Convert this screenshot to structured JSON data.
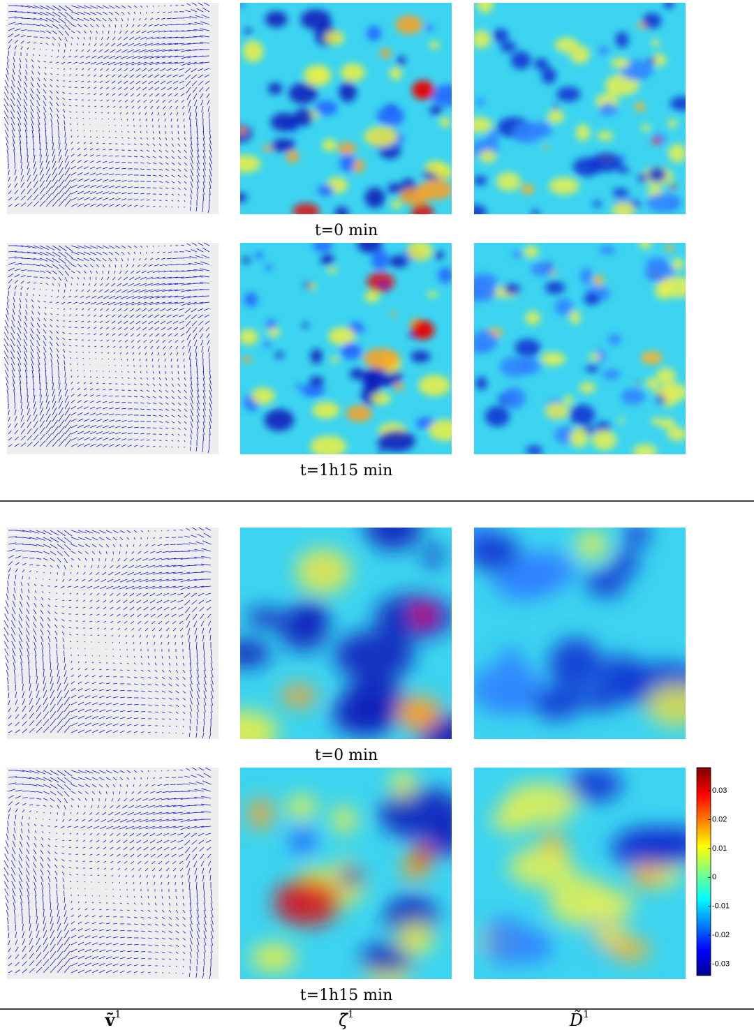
{
  "captions": {
    "top_row1": "t=0 min",
    "top_row2": "t=1h15 min",
    "bottom_row1": "t=0 min",
    "bottom_row2": "t=1h15 min"
  },
  "column_labels": [
    {
      "symbol": "ṽ",
      "sup": "1"
    },
    {
      "symbol": "ζ̃",
      "sup": "1"
    },
    {
      "symbol": "D̃",
      "sup": "1"
    }
  ],
  "colorbar": {
    "ylim": [
      -0.034,
      0.038
    ],
    "yticks": [
      -0.03,
      -0.02,
      -0.01,
      0,
      0.01,
      0.02,
      0.03
    ]
  }
}
